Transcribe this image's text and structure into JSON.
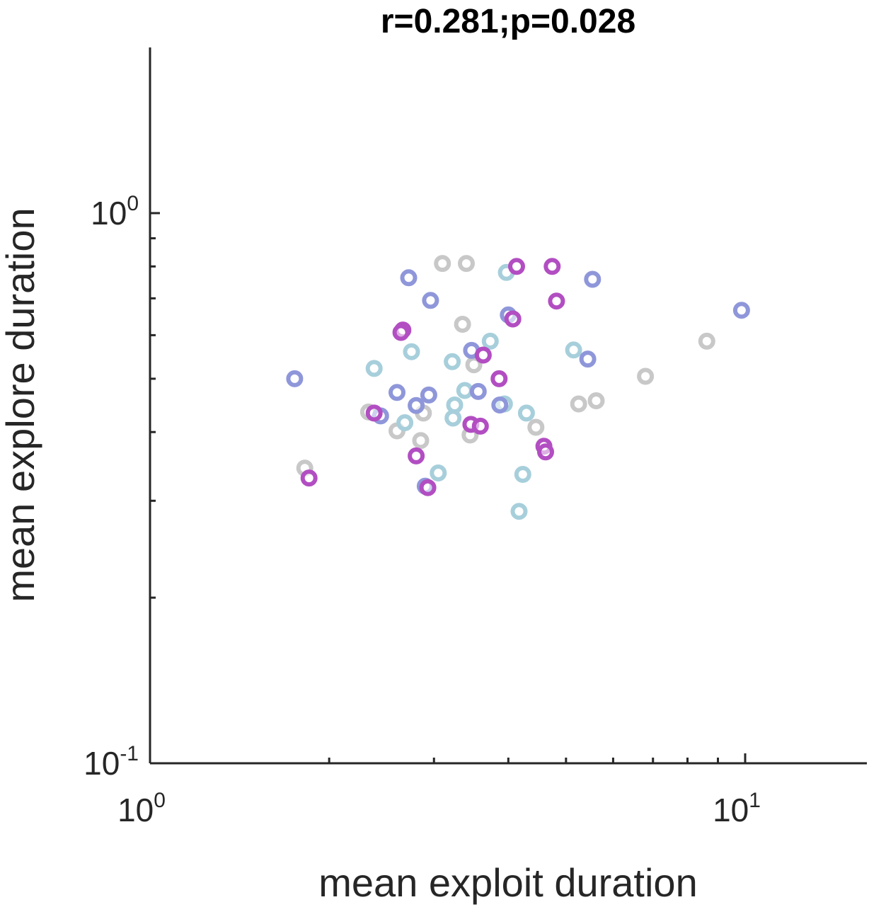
{
  "chart_data": {
    "type": "scatter",
    "title": "r=0.281;p=0.028",
    "xlabel": "mean exploit duration",
    "ylabel": "mean explore duration",
    "xscale": "log",
    "yscale": "log",
    "xlim": [
      1,
      16
    ],
    "ylim": [
      0.1,
      1.9
    ],
    "grid": false,
    "x_ticks": [
      {
        "base": "10",
        "exp": "0",
        "value": 1
      },
      {
        "base": "10",
        "exp": "1",
        "value": 10
      }
    ],
    "y_ticks": [
      {
        "base": "10",
        "exp": "-1",
        "value": 0.1
      },
      {
        "base": "10",
        "exp": "0",
        "value": 1
      }
    ],
    "series": [
      {
        "color": "#c8c8c8",
        "points": [
          [
            3.1,
            0.81
          ],
          [
            3.4,
            0.81
          ],
          [
            3.35,
            0.628
          ],
          [
            3.5,
            0.53
          ],
          [
            2.33,
            0.435
          ],
          [
            2.88,
            0.433
          ],
          [
            2.6,
            0.402
          ],
          [
            2.85,
            0.386
          ],
          [
            3.45,
            0.395
          ],
          [
            4.45,
            0.408
          ],
          [
            1.82,
            0.344
          ],
          [
            5.25,
            0.45
          ],
          [
            5.62,
            0.456
          ],
          [
            6.8,
            0.505
          ],
          [
            8.62,
            0.585
          ]
        ]
      },
      {
        "color": "#a7cfdb",
        "points": [
          [
            3.97,
            0.78
          ],
          [
            3.73,
            0.585
          ],
          [
            2.75,
            0.56
          ],
          [
            3.22,
            0.537
          ],
          [
            2.38,
            0.522
          ],
          [
            3.38,
            0.476
          ],
          [
            3.25,
            0.448
          ],
          [
            3.94,
            0.45
          ],
          [
            3.23,
            0.424
          ],
          [
            2.68,
            0.416
          ],
          [
            4.29,
            0.433
          ],
          [
            5.15,
            0.564
          ],
          [
            3.05,
            0.337
          ],
          [
            4.23,
            0.335
          ],
          [
            4.17,
            0.287
          ]
        ]
      },
      {
        "color": "#8f97da",
        "points": [
          [
            2.72,
            0.763
          ],
          [
            2.96,
            0.694
          ],
          [
            4.0,
            0.653
          ],
          [
            5.54,
            0.758
          ],
          [
            3.47,
            0.563
          ],
          [
            5.44,
            0.543
          ],
          [
            9.86,
            0.666
          ],
          [
            1.75,
            0.5
          ],
          [
            2.6,
            0.472
          ],
          [
            2.94,
            0.467
          ],
          [
            3.56,
            0.474
          ],
          [
            2.8,
            0.447
          ],
          [
            3.87,
            0.448
          ],
          [
            2.44,
            0.428
          ],
          [
            2.9,
            0.319
          ]
        ]
      },
      {
        "color": "#b24ec2",
        "points": [
          [
            4.13,
            0.8
          ],
          [
            4.74,
            0.8
          ],
          [
            4.82,
            0.692
          ],
          [
            4.07,
            0.642
          ],
          [
            2.66,
            0.613
          ],
          [
            2.64,
            0.607
          ],
          [
            3.63,
            0.552
          ],
          [
            3.86,
            0.5
          ],
          [
            2.38,
            0.433
          ],
          [
            3.46,
            0.413
          ],
          [
            3.59,
            0.41
          ],
          [
            4.59,
            0.377
          ],
          [
            4.62,
            0.368
          ],
          [
            2.8,
            0.362
          ],
          [
            1.85,
            0.33
          ],
          [
            2.93,
            0.317
          ]
        ]
      }
    ]
  }
}
